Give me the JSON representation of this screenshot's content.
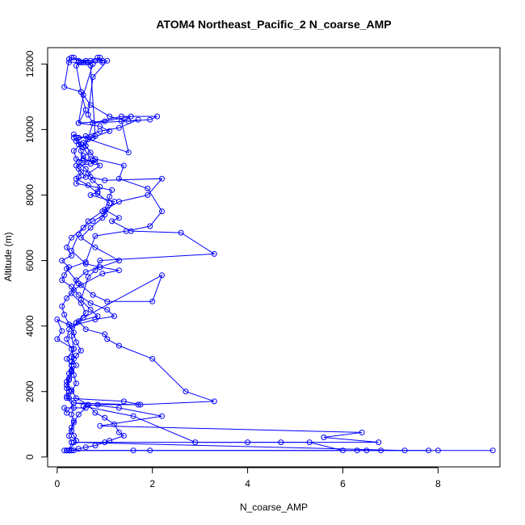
{
  "chart_data": {
    "type": "line",
    "title": "ATOM4 Northeast_Pacific_2 N_coarse_AMP",
    "xlabel": "N_coarse_AMP",
    "ylabel": "Altitude (m)",
    "xlim": [
      -0.2,
      9.3
    ],
    "ylim": [
      -300,
      12500
    ],
    "x_ticks": [
      0,
      2,
      4,
      6,
      8
    ],
    "y_ticks": [
      0,
      2000,
      4000,
      6000,
      8000,
      10000,
      12000
    ],
    "grid": false,
    "legend": "none",
    "series_color": "#0000ff",
    "marker": "open-circle",
    "series": [
      {
        "points": [
          [
            0.9,
            12200
          ],
          [
            0.7,
            12100
          ],
          [
            0.45,
            12100
          ],
          [
            0.3,
            12200
          ],
          [
            0.25,
            12150
          ],
          [
            0.15,
            11300
          ],
          [
            0.5,
            11150
          ],
          [
            0.7,
            10750
          ],
          [
            1.1,
            10400
          ],
          [
            1.5,
            10250
          ],
          [
            1.7,
            10300
          ],
          [
            1.3,
            10050
          ],
          [
            0.9,
            9950
          ],
          [
            0.6,
            9800
          ],
          [
            0.4,
            9650
          ],
          [
            0.55,
            9450
          ],
          [
            0.7,
            9100
          ],
          [
            0.45,
            8800
          ],
          [
            0.6,
            8550
          ],
          [
            0.4,
            8500
          ],
          [
            0.65,
            8300
          ],
          [
            0.85,
            8050
          ],
          [
            1.1,
            7750
          ],
          [
            0.95,
            7300
          ],
          [
            0.7,
            7000
          ],
          [
            0.5,
            6700
          ],
          [
            0.8,
            6400
          ],
          [
            1.3,
            6000
          ],
          [
            0.9,
            5800
          ],
          [
            0.6,
            5650
          ],
          [
            0.4,
            5400
          ],
          [
            0.3,
            5000
          ],
          [
            0.5,
            4700
          ],
          [
            0.6,
            4400
          ],
          [
            0.4,
            4100
          ],
          [
            0.3,
            3700
          ],
          [
            0.35,
            3300
          ],
          [
            0.3,
            3050
          ],
          [
            0.4,
            2800
          ],
          [
            0.3,
            2600
          ],
          [
            0.25,
            2350
          ],
          [
            0.2,
            2100
          ],
          [
            0.2,
            1850
          ],
          [
            0.35,
            1500
          ],
          [
            0.3,
            1300
          ],
          [
            0.35,
            1100
          ],
          [
            0.3,
            900
          ],
          [
            0.25,
            650
          ],
          [
            0.3,
            450
          ],
          [
            0.25,
            200
          ]
        ]
      },
      {
        "points": [
          [
            0.5,
            12050
          ],
          [
            0.6,
            12100
          ],
          [
            0.8,
            12100
          ],
          [
            1.05,
            12100
          ],
          [
            0.75,
            11600
          ],
          [
            0.65,
            10450
          ],
          [
            0.75,
            10200
          ],
          [
            1.35,
            10400
          ],
          [
            2.1,
            10400
          ],
          [
            1.95,
            10300
          ],
          [
            0.75,
            10200
          ],
          [
            0.6,
            9500
          ],
          [
            0.8,
            9100
          ],
          [
            1.4,
            8900
          ],
          [
            1.3,
            8500
          ],
          [
            1.9,
            8200
          ],
          [
            2.2,
            7500
          ],
          [
            1.95,
            7050
          ],
          [
            1.45,
            6900
          ],
          [
            0.8,
            6750
          ],
          [
            0.6,
            5950
          ],
          [
            0.2,
            5750
          ],
          [
            0.45,
            5300
          ],
          [
            0.75,
            4950
          ],
          [
            1.05,
            4750
          ],
          [
            2.0,
            4750
          ],
          [
            2.2,
            5550
          ],
          [
            0.55,
            4250
          ],
          [
            0.25,
            3900
          ],
          [
            0.2,
            3600
          ],
          [
            0.3,
            3300
          ],
          [
            0.35,
            3000
          ],
          [
            0.3,
            2800
          ],
          [
            0.25,
            2550
          ],
          [
            0.2,
            2300
          ],
          [
            0.3,
            2050
          ],
          [
            0.4,
            1800
          ],
          [
            0.65,
            1600
          ],
          [
            0.8,
            1350
          ],
          [
            1.0,
            1200
          ],
          [
            1.2,
            1000
          ],
          [
            1.3,
            750
          ],
          [
            1.4,
            650
          ],
          [
            1.1,
            500
          ],
          [
            1.0,
            450
          ],
          [
            0.8,
            350
          ],
          [
            0.6,
            300
          ],
          [
            0.45,
            250
          ],
          [
            0.3,
            200
          ],
          [
            0.2,
            200
          ]
        ]
      },
      {
        "points": [
          [
            0.95,
            12100
          ],
          [
            0.85,
            12200
          ],
          [
            0.95,
            12050
          ],
          [
            0.55,
            12050
          ],
          [
            0.4,
            11950
          ],
          [
            0.5,
            11150
          ],
          [
            0.6,
            10600
          ],
          [
            0.45,
            10200
          ],
          [
            1.0,
            10250
          ],
          [
            1.55,
            10400
          ],
          [
            1.35,
            10250
          ],
          [
            1.5,
            9300
          ],
          [
            0.35,
            9850
          ],
          [
            0.35,
            9750
          ],
          [
            0.45,
            9550
          ],
          [
            0.5,
            9350
          ],
          [
            0.55,
            9100
          ],
          [
            0.8,
            9000
          ],
          [
            0.7,
            8950
          ],
          [
            0.4,
            8900
          ],
          [
            0.5,
            8700
          ],
          [
            0.45,
            8550
          ],
          [
            0.4,
            8350
          ],
          [
            1.15,
            8150
          ],
          [
            1.1,
            7950
          ],
          [
            1.0,
            7550
          ],
          [
            1.3,
            7300
          ],
          [
            1.15,
            7200
          ],
          [
            1.55,
            6900
          ],
          [
            2.6,
            6850
          ],
          [
            3.3,
            6200
          ],
          [
            0.9,
            6000
          ],
          [
            0.8,
            5700
          ],
          [
            0.65,
            5500
          ],
          [
            0.5,
            4800
          ],
          [
            0.7,
            4500
          ],
          [
            0.85,
            4300
          ],
          [
            0.45,
            4150
          ],
          [
            0.6,
            3900
          ],
          [
            1.0,
            3750
          ],
          [
            1.05,
            3600
          ],
          [
            1.3,
            3400
          ],
          [
            2.0,
            3000
          ],
          [
            2.7,
            2000
          ],
          [
            3.3,
            1700
          ],
          [
            1.7,
            1600
          ],
          [
            0.35,
            1650
          ],
          [
            1.3,
            1500
          ],
          [
            2.2,
            1250
          ],
          [
            0.9,
            950
          ],
          [
            6.4,
            750
          ],
          [
            5.6,
            600
          ],
          [
            6.75,
            450
          ],
          [
            0.35,
            450
          ],
          [
            7.3,
            200
          ],
          [
            8.0,
            200
          ],
          [
            9.15,
            200
          ],
          [
            6.8,
            200
          ],
          [
            0.35,
            200
          ]
        ]
      },
      {
        "points": [
          [
            0.25,
            12050
          ],
          [
            0.5,
            12050
          ],
          [
            0.65,
            12050
          ],
          [
            0.75,
            12000
          ],
          [
            0.55,
            11050
          ],
          [
            0.45,
            10200
          ],
          [
            0.9,
            10100
          ],
          [
            1.1,
            9950
          ],
          [
            0.65,
            9700
          ],
          [
            0.75,
            9750
          ],
          [
            0.55,
            9600
          ],
          [
            0.7,
            9300
          ],
          [
            0.55,
            9200
          ],
          [
            0.45,
            9000
          ],
          [
            0.6,
            8800
          ],
          [
            0.7,
            8550
          ],
          [
            1.0,
            8450
          ],
          [
            2.2,
            8500
          ],
          [
            1.9,
            8000
          ],
          [
            1.3,
            7800
          ],
          [
            0.95,
            7500
          ],
          [
            0.65,
            7200
          ],
          [
            0.45,
            6800
          ],
          [
            0.3,
            6300
          ],
          [
            0.6,
            5900
          ],
          [
            0.9,
            5800
          ],
          [
            1.3,
            5700
          ],
          [
            0.95,
            5600
          ],
          [
            0.5,
            5250
          ],
          [
            0.35,
            5100
          ],
          [
            0.2,
            4850
          ],
          [
            0.1,
            4600
          ],
          [
            0.15,
            4350
          ],
          [
            0.25,
            4050
          ],
          [
            0.35,
            3800
          ],
          [
            0.4,
            3500
          ],
          [
            0.5,
            3250
          ],
          [
            0.4,
            3100
          ],
          [
            0.3,
            2900
          ],
          [
            0.3,
            2650
          ],
          [
            0.25,
            2400
          ],
          [
            0.2,
            2200
          ],
          [
            0.25,
            2000
          ],
          [
            0.2,
            1800
          ],
          [
            1.4,
            1700
          ],
          [
            1.75,
            1600
          ],
          [
            0.85,
            1600
          ],
          [
            0.55,
            1550
          ],
          [
            1.6,
            1250
          ],
          [
            2.9,
            450
          ],
          [
            4.0,
            450
          ],
          [
            4.7,
            450
          ],
          [
            5.3,
            450
          ],
          [
            6.0,
            200
          ],
          [
            6.3,
            200
          ],
          [
            6.5,
            200
          ],
          [
            7.8,
            200
          ],
          [
            1.95,
            200
          ],
          [
            1.6,
            200
          ],
          [
            0.3,
            200
          ],
          [
            0.25,
            200
          ],
          [
            0.2,
            200
          ]
        ]
      },
      {
        "points": [
          [
            0.35,
            12200
          ],
          [
            0.6,
            12050
          ],
          [
            0.45,
            12050
          ],
          [
            0.65,
            12050
          ],
          [
            0.7,
            11950
          ],
          [
            0.8,
            9800
          ],
          [
            0.45,
            9750
          ],
          [
            0.4,
            9750
          ],
          [
            0.5,
            9550
          ],
          [
            0.35,
            9350
          ],
          [
            0.4,
            9100
          ],
          [
            0.55,
            9050
          ],
          [
            0.75,
            9050
          ],
          [
            0.9,
            8900
          ],
          [
            0.65,
            8650
          ],
          [
            0.75,
            8450
          ],
          [
            0.9,
            8250
          ],
          [
            0.85,
            8100
          ],
          [
            0.7,
            8000
          ],
          [
            1.2,
            7800
          ],
          [
            1.0,
            7400
          ],
          [
            0.75,
            7200
          ],
          [
            0.55,
            7000
          ],
          [
            0.3,
            6700
          ],
          [
            0.2,
            6400
          ],
          [
            0.3,
            6150
          ],
          [
            0.1,
            6000
          ],
          [
            0.25,
            5800
          ],
          [
            0.15,
            5550
          ],
          [
            0.1,
            5400
          ],
          [
            0.3,
            5200
          ],
          [
            0.45,
            4950
          ],
          [
            0.7,
            4700
          ],
          [
            1.05,
            4500
          ],
          [
            1.2,
            4300
          ],
          [
            0.8,
            4200
          ],
          [
            0.3,
            4000
          ],
          [
            0.0,
            4200
          ],
          [
            0.1,
            3850
          ],
          [
            0.0,
            3600
          ],
          [
            0.35,
            3300
          ],
          [
            0.2,
            3000
          ],
          [
            0.3,
            2800
          ],
          [
            0.35,
            2500
          ],
          [
            0.4,
            2250
          ],
          [
            0.3,
            2000
          ],
          [
            0.25,
            1800
          ],
          [
            0.35,
            1650
          ],
          [
            0.2,
            1350
          ],
          [
            0.15,
            1500
          ],
          [
            0.6,
            1500
          ],
          [
            0.45,
            1300
          ],
          [
            0.35,
            1050
          ],
          [
            0.3,
            800
          ],
          [
            0.35,
            650
          ],
          [
            0.4,
            500
          ],
          [
            0.25,
            200
          ],
          [
            0.25,
            200
          ],
          [
            0.2,
            200
          ],
          [
            0.15,
            200
          ]
        ]
      }
    ]
  }
}
